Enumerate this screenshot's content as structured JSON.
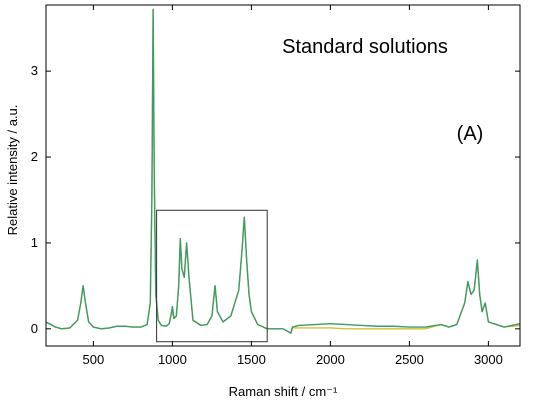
{
  "chart_data": {
    "type": "line",
    "annotations": [
      "Standard solutions",
      "(A)"
    ],
    "xlabel": "Raman shift / cm⁻¹",
    "ylabel": "Relative intensity / a.u.",
    "xlim": [
      200,
      3200
    ],
    "ylim": [
      -0.2,
      3.77
    ],
    "xticks": [
      500,
      1000,
      1500,
      2000,
      2500,
      3000
    ],
    "yticks": [
      0,
      1,
      2,
      3
    ],
    "highlight_box": {
      "x": [
        900,
        1600
      ],
      "y": [
        -0.15,
        1.38
      ]
    },
    "x": [
      200,
      230,
      260,
      300,
      350,
      400,
      420,
      435,
      450,
      470,
      500,
      550,
      600,
      650,
      700,
      750,
      800,
      840,
      860,
      870,
      878,
      885,
      895,
      910,
      930,
      960,
      980,
      995,
      1000,
      1010,
      1025,
      1040,
      1050,
      1060,
      1075,
      1090,
      1105,
      1130,
      1180,
      1220,
      1250,
      1270,
      1285,
      1320,
      1370,
      1420,
      1440,
      1455,
      1470,
      1485,
      1500,
      1540,
      1600,
      1700,
      1750,
      1760,
      1800,
      1900,
      2000,
      2100,
      2200,
      2300,
      2400,
      2500,
      2600,
      2700,
      2750,
      2800,
      2850,
      2870,
      2890,
      2910,
      2930,
      2945,
      2960,
      2980,
      3000,
      3100,
      3200
    ],
    "series": [
      {
        "color": "#d9c030",
        "values": [
          0.08,
          0.05,
          0.02,
          0,
          0.01,
          0.1,
          0.3,
          0.5,
          0.3,
          0.08,
          0.02,
          0,
          0.01,
          0.03,
          0.03,
          0.02,
          0.02,
          0.05,
          0.3,
          1.5,
          3.72,
          1.8,
          0.4,
          0.1,
          0.04,
          0.03,
          0.06,
          0.18,
          0.2,
          0.12,
          0.15,
          0.5,
          1.05,
          0.7,
          0.6,
          1.0,
          0.6,
          0.1,
          0.04,
          0.05,
          0.15,
          0.5,
          0.2,
          0.08,
          0.15,
          0.45,
          0.9,
          1.3,
          0.8,
          0.4,
          0.2,
          0.05,
          0,
          0,
          -0.05,
          0.01,
          0.01,
          0.01,
          0.01,
          0,
          0,
          0,
          0,
          0,
          0,
          0.05,
          0.02,
          0.05,
          0.3,
          0.55,
          0.4,
          0.45,
          0.8,
          0.4,
          0.2,
          0.3,
          0.08,
          0.02,
          0.04
        ]
      },
      {
        "color": "#3d9a6a",
        "values": [
          0.08,
          0.05,
          0.02,
          0,
          0.01,
          0.1,
          0.3,
          0.5,
          0.3,
          0.08,
          0.02,
          0,
          0.01,
          0.03,
          0.03,
          0.02,
          0.02,
          0.05,
          0.3,
          1.5,
          3.72,
          1.8,
          0.4,
          0.1,
          0.04,
          0.03,
          0.06,
          0.2,
          0.26,
          0.12,
          0.15,
          0.5,
          1.05,
          0.7,
          0.6,
          1.0,
          0.6,
          0.1,
          0.04,
          0.05,
          0.15,
          0.5,
          0.2,
          0.08,
          0.15,
          0.45,
          0.9,
          1.3,
          0.8,
          0.4,
          0.2,
          0.05,
          0,
          0,
          -0.05,
          0.02,
          0.04,
          0.05,
          0.06,
          0.05,
          0.04,
          0.03,
          0.03,
          0.02,
          0.02,
          0.05,
          0.02,
          0.05,
          0.3,
          0.55,
          0.4,
          0.45,
          0.8,
          0.4,
          0.2,
          0.3,
          0.08,
          0.02,
          0.06
        ]
      }
    ]
  }
}
